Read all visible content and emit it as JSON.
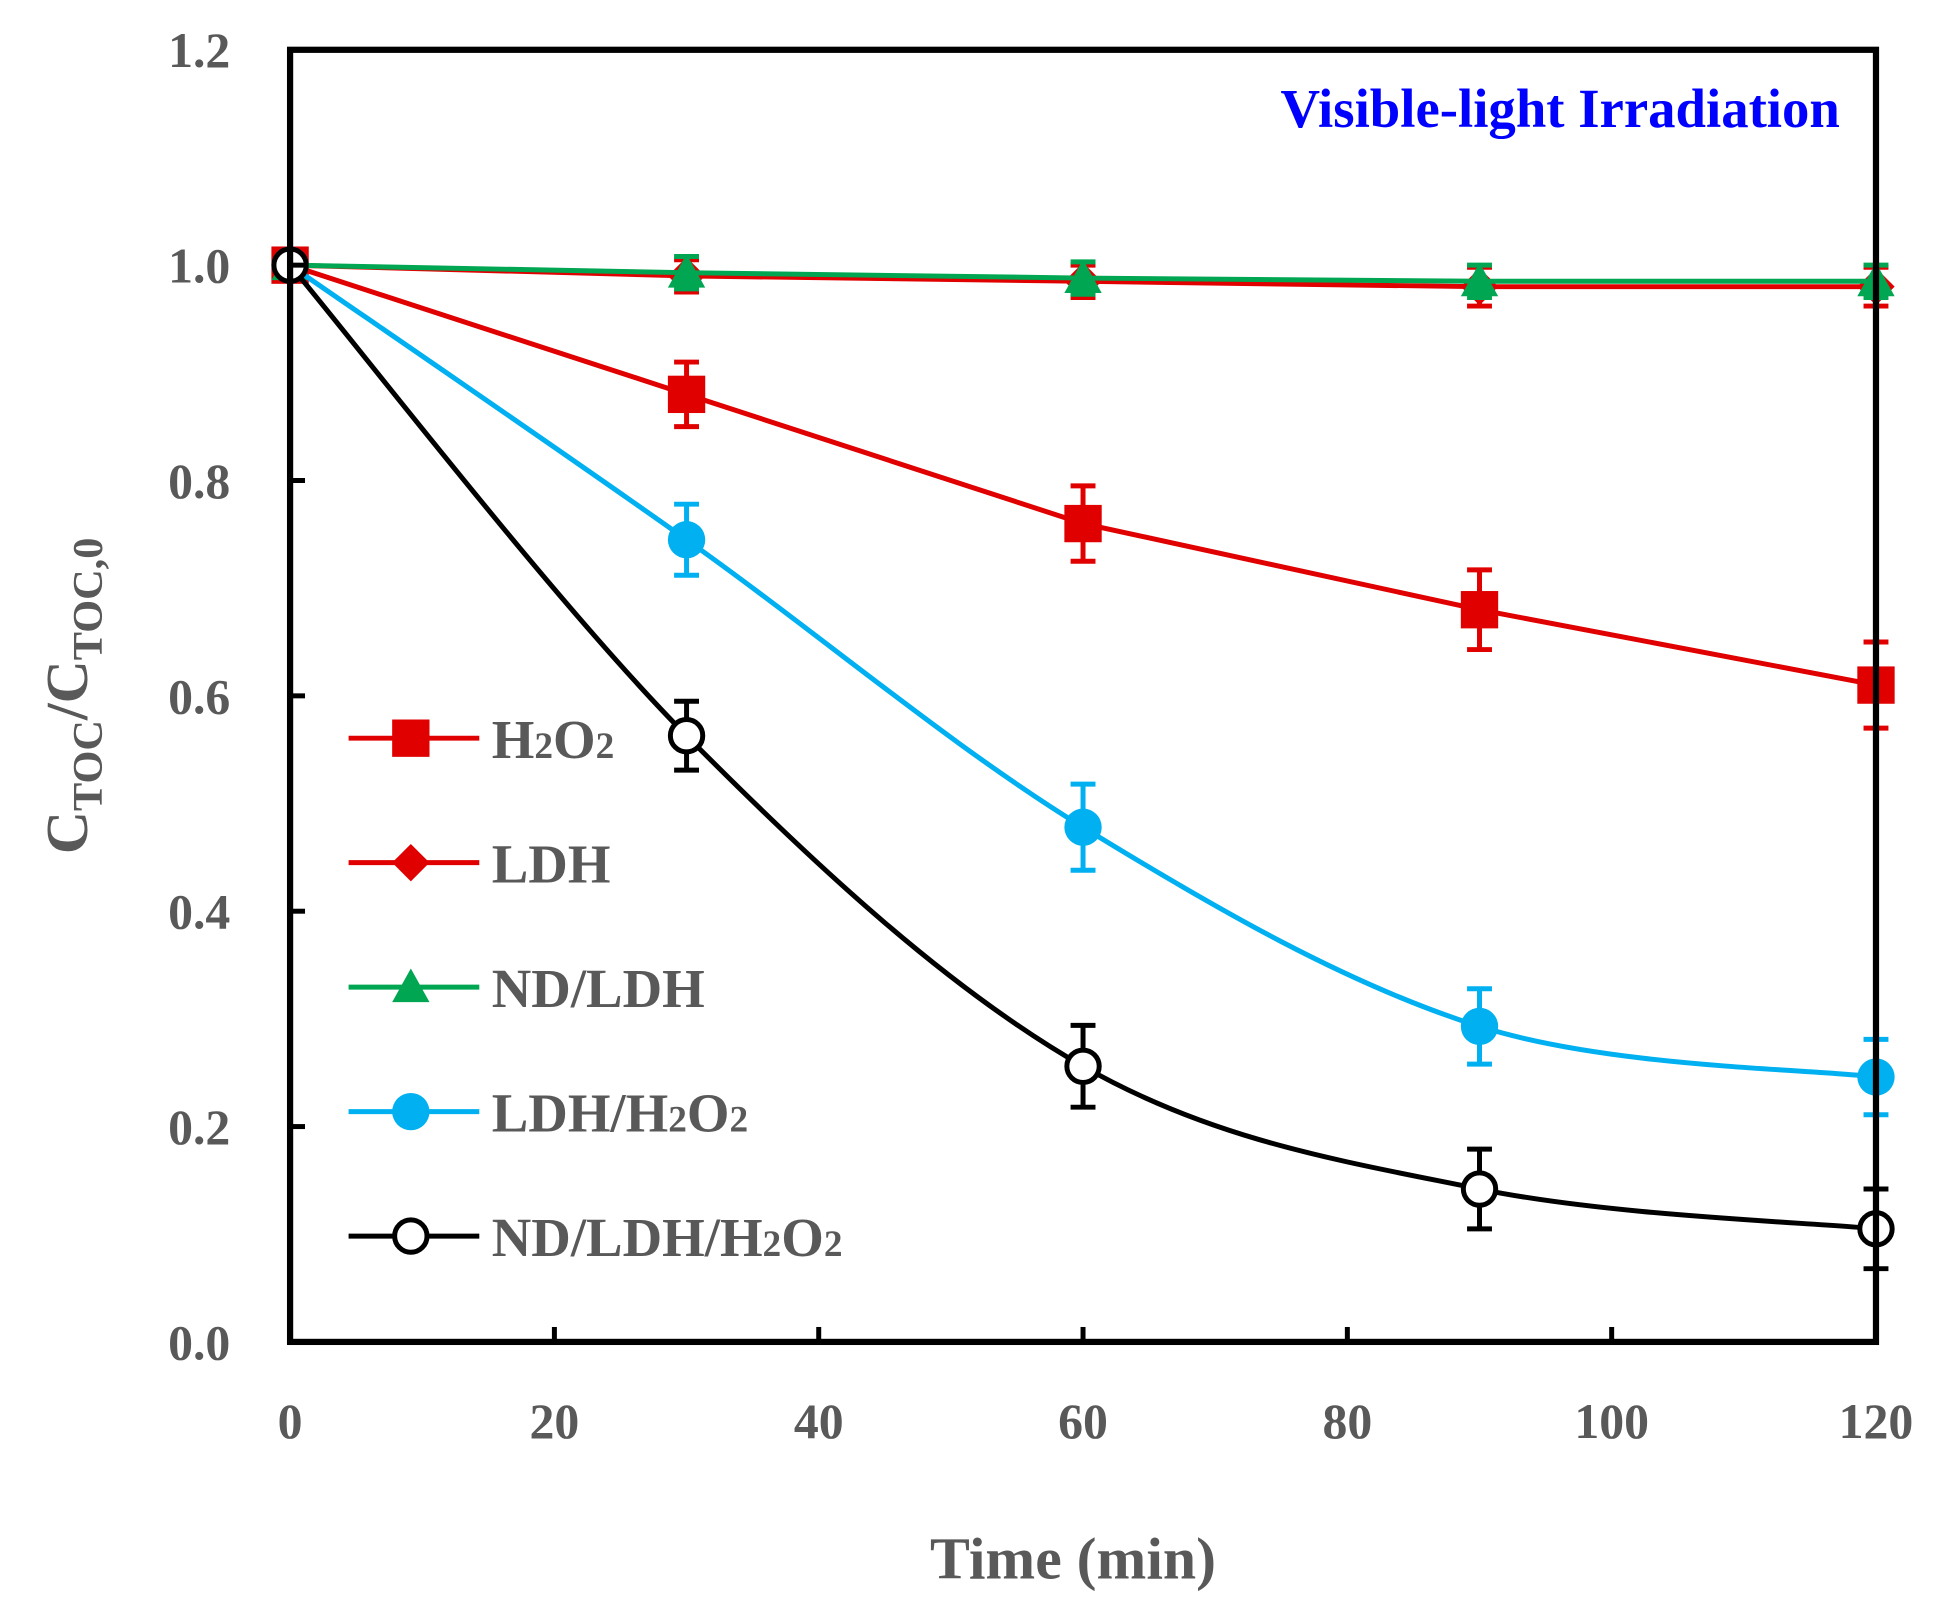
{
  "chart_data": {
    "type": "line",
    "title": "",
    "annotation": "Visible-light Irradiation",
    "xlabel": "Time (min)",
    "ylabel": "C_TOC/C_TOC,0",
    "ylabel_parts": {
      "c1": "C",
      "s1": "TOC",
      "slash": "/",
      "c2": "C",
      "s2": "TOC,0"
    },
    "xlim": [
      0,
      120
    ],
    "ylim": [
      0,
      1.2
    ],
    "xticks": [
      0,
      20,
      40,
      60,
      80,
      100,
      120
    ],
    "xtick_labels": [
      "0",
      "20",
      "40",
      "60",
      "80",
      "100",
      "120"
    ],
    "yticks": [
      0,
      0.2,
      0.4,
      0.6,
      0.8,
      1.0,
      1.2
    ],
    "ytick_labels": [
      "0.0",
      "0.2",
      "0.4",
      "0.6",
      "0.8",
      "1.0",
      "1.2"
    ],
    "grid": false,
    "legend_position": "center-left",
    "x": [
      0,
      30,
      60,
      90,
      120
    ],
    "series": [
      {
        "name": "H2O2",
        "label_parts": [
          "H",
          "2",
          "O",
          "2"
        ],
        "color": "#e00000",
        "marker": "square",
        "smooth": false,
        "values": [
          1.0,
          0.88,
          0.76,
          0.68,
          0.61
        ],
        "errors": [
          0,
          0.03,
          0.035,
          0.037,
          0.04
        ]
      },
      {
        "name": "LDH",
        "label_parts": [
          "LDH"
        ],
        "color": "#e00000",
        "marker": "diamond",
        "smooth": false,
        "values": [
          1.0,
          0.99,
          0.985,
          0.98,
          0.98
        ],
        "errors": [
          0,
          0.015,
          0.015,
          0.018,
          0.018
        ]
      },
      {
        "name": "ND/LDH",
        "label_parts": [
          "ND/LDH"
        ],
        "color": "#00a651",
        "marker": "triangle",
        "smooth": false,
        "values": [
          1.0,
          0.993,
          0.988,
          0.985,
          0.985
        ],
        "errors": [
          0,
          0.015,
          0.015,
          0.015,
          0.015
        ]
      },
      {
        "name": "LDH/H2O2",
        "label_parts": [
          "LDH/H",
          "2",
          "O",
          "2"
        ],
        "color": "#00b0f0",
        "marker": "circle",
        "smooth": true,
        "values": [
          1.0,
          0.745,
          0.478,
          0.293,
          0.246
        ],
        "errors": [
          0,
          0.033,
          0.04,
          0.035,
          0.035
        ]
      },
      {
        "name": "ND/LDH/H2O2",
        "label_parts": [
          "ND/LDH/H",
          "2",
          "O",
          "2"
        ],
        "color": "#000000",
        "marker": "open-circle",
        "smooth": true,
        "values": [
          1.0,
          0.563,
          0.256,
          0.142,
          0.105
        ],
        "errors": [
          0,
          0.032,
          0.038,
          0.037,
          0.037
        ]
      }
    ]
  }
}
